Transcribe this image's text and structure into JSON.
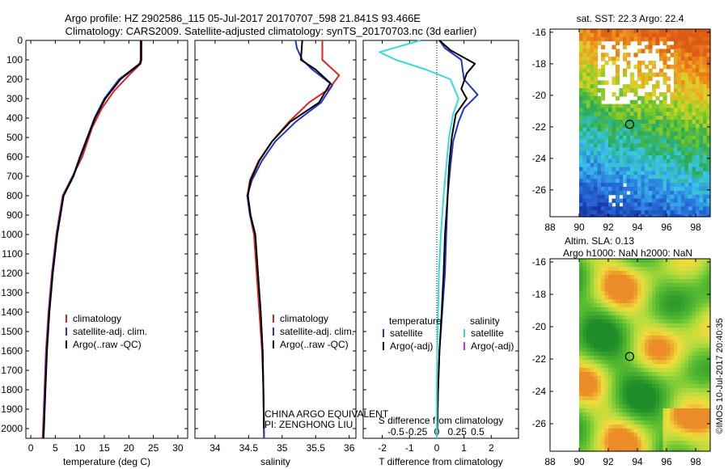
{
  "header": {
    "title_line1": "Argo profile: HZ 2902586_115 05-Jul-2017 20170707_598 21.841S 93.466E",
    "title_line2": "Climatology: CARS2009. Satellite-adjusted climatology: synTS_20170703.nc (3d earlier)"
  },
  "colors": {
    "climatology": "#dd2222",
    "satellite": "#2233cc",
    "argo": "#000000",
    "satellite_salinity": "#33dddd",
    "argo_salinity": "#cc33cc"
  },
  "chart_data": [
    {
      "type": "line",
      "id": "temperature",
      "xlabel": "temperature (deg C)",
      "ylim": [
        2050,
        0
      ],
      "xlim": [
        -1,
        32
      ],
      "xticks": [
        0,
        5,
        10,
        15,
        20,
        25,
        30
      ],
      "yticks": [
        0,
        100,
        200,
        300,
        400,
        500,
        600,
        700,
        800,
        900,
        1000,
        1100,
        1200,
        1300,
        1400,
        1500,
        1600,
        1700,
        1800,
        1900,
        2000
      ],
      "legend": [
        "climatology",
        "satellite-adj. clim.",
        "Argo(..raw -QC)"
      ],
      "series": [
        {
          "name": "climatology",
          "color": "#dd2222",
          "points": [
            [
              22.6,
              0
            ],
            [
              22.6,
              100
            ],
            [
              22.4,
              120
            ],
            [
              20,
              180
            ],
            [
              17,
              260
            ],
            [
              14.5,
              350
            ],
            [
              12.5,
              450
            ],
            [
              10.5,
              600
            ],
            [
              8.5,
              700
            ],
            [
              6.5,
              800
            ],
            [
              5.2,
              1000
            ],
            [
              4.3,
              1200
            ],
            [
              3.6,
              1400
            ],
            [
              3.1,
              1600
            ],
            [
              2.8,
              1800
            ],
            [
              2.5,
              2000
            ],
            [
              2.4,
              2050
            ]
          ]
        },
        {
          "name": "satellite-adj. clim.",
          "color": "#2233cc",
          "points": [
            [
              22.4,
              0
            ],
            [
              22.4,
              100
            ],
            [
              22.2,
              120
            ],
            [
              18,
              200
            ],
            [
              15,
              300
            ],
            [
              13,
              400
            ],
            [
              11.5,
              500
            ],
            [
              10,
              600
            ],
            [
              8.6,
              700
            ],
            [
              6.6,
              800
            ],
            [
              5.3,
              1000
            ],
            [
              4.4,
              1200
            ],
            [
              3.7,
              1400
            ],
            [
              3.2,
              1600
            ],
            [
              2.9,
              1800
            ],
            [
              2.6,
              2000
            ],
            [
              2.5,
              2050
            ]
          ]
        },
        {
          "name": "Argo(..raw -QC)",
          "color": "#000000",
          "points": [
            [
              22.5,
              0
            ],
            [
              22.5,
              100
            ],
            [
              22.3,
              120
            ],
            [
              18.3,
              200
            ],
            [
              15.2,
              300
            ],
            [
              13.1,
              400
            ],
            [
              11.6,
              500
            ],
            [
              10.1,
              600
            ],
            [
              8.7,
              700
            ],
            [
              6.7,
              800
            ],
            [
              5.4,
              1000
            ],
            [
              4.5,
              1200
            ],
            [
              3.8,
              1400
            ],
            [
              3.3,
              1600
            ],
            [
              3,
              1800
            ],
            [
              2.7,
              2000
            ],
            [
              2.6,
              2050
            ]
          ]
        }
      ]
    },
    {
      "type": "line",
      "id": "salinity",
      "xlabel": "salinity",
      "ylim": [
        2050,
        0
      ],
      "xlim": [
        33.7,
        36.1
      ],
      "xticks": [
        34,
        34.5,
        35,
        35.5,
        36
      ],
      "xtick_labels": [
        "34",
        "34.5",
        "35",
        "35.5",
        "36"
      ],
      "legend": [
        "climatology",
        "satellite-adj. clim.",
        "Argo(..raw -QC)"
      ],
      "annotation": [
        "CHINA ARGO EQUIVALENT",
        "PI: ZENGHONG LIU"
      ],
      "series": [
        {
          "name": "climatology",
          "color": "#dd2222",
          "points": [
            [
              35.6,
              0
            ],
            [
              35.6,
              100
            ],
            [
              35.85,
              180
            ],
            [
              35.7,
              250
            ],
            [
              35.4,
              320
            ],
            [
              35.1,
              420
            ],
            [
              34.85,
              520
            ],
            [
              34.65,
              620
            ],
            [
              34.52,
              720
            ],
            [
              34.48,
              800
            ],
            [
              34.52,
              900
            ],
            [
              34.58,
              1000
            ],
            [
              34.62,
              1200
            ],
            [
              34.66,
              1400
            ],
            [
              34.7,
              1600
            ],
            [
              34.72,
              1800
            ],
            [
              34.73,
              2050
            ]
          ]
        },
        {
          "name": "satellite-adj. clim.",
          "color": "#2233cc",
          "points": [
            [
              35.2,
              0
            ],
            [
              35.22,
              40
            ],
            [
              35.3,
              100
            ],
            [
              35.45,
              150
            ],
            [
              35.75,
              230
            ],
            [
              35.58,
              320
            ],
            [
              35.2,
              420
            ],
            [
              34.9,
              520
            ],
            [
              34.7,
              620
            ],
            [
              34.55,
              720
            ],
            [
              34.48,
              800
            ],
            [
              34.52,
              900
            ],
            [
              34.6,
              1000
            ],
            [
              34.64,
              1200
            ],
            [
              34.68,
              1400
            ],
            [
              34.71,
              1600
            ],
            [
              34.72,
              1800
            ],
            [
              34.73,
              2050
            ]
          ]
        },
        {
          "name": "Argo(..raw -QC)",
          "color": "#000000",
          "points": [
            [
              35.3,
              0
            ],
            [
              35.28,
              100
            ],
            [
              35.5,
              150
            ],
            [
              35.72,
              220
            ],
            [
              35.55,
              320
            ],
            [
              35.12,
              420
            ],
            [
              34.85,
              520
            ],
            [
              34.66,
              620
            ],
            [
              34.53,
              720
            ],
            [
              34.49,
              800
            ],
            [
              34.53,
              900
            ],
            [
              34.6,
              1000
            ],
            [
              34.64,
              1200
            ],
            [
              34.68,
              1400
            ],
            [
              34.71,
              1600
            ],
            [
              34.72,
              1800
            ],
            [
              34.73,
              2000
            ]
          ]
        }
      ]
    },
    {
      "type": "line",
      "id": "difference",
      "xlabel": "T difference from climatology",
      "top_xlabel": "S difference from climatology",
      "ylim": [
        2050,
        0
      ],
      "xlim": [
        -2.7,
        3
      ],
      "xticks": [
        -2,
        -1,
        0,
        1,
        2
      ],
      "xtick_labels": [
        "-2",
        "-1",
        "0",
        "1",
        "2"
      ],
      "top_xtick_values": [
        -1.5,
        -0.75,
        0,
        0.75,
        1.5
      ],
      "top_xtick_labels": [
        "-0.5",
        "-0.25",
        "0",
        "0.25",
        "0.5"
      ],
      "legend_left_title": "temperature",
      "legend_right_title": "salinity",
      "legend_left": [
        "satellite",
        "Argo(-adj)"
      ],
      "legend_right": [
        "satellite",
        "Argo(-adj)"
      ],
      "series": [
        {
          "name": "satellite",
          "color": "#2233cc",
          "points": [
            [
              0.1,
              0
            ],
            [
              0.3,
              40
            ],
            [
              0.9,
              100
            ],
            [
              1,
              200
            ],
            [
              1.5,
              280
            ],
            [
              1,
              350
            ],
            [
              0.8,
              420
            ],
            [
              0.6,
              520
            ],
            [
              0.5,
              650
            ],
            [
              0.4,
              800
            ],
            [
              0.35,
              1000
            ],
            [
              0.3,
              1200
            ],
            [
              0.2,
              1400
            ],
            [
              0.1,
              1600
            ],
            [
              0.05,
              1800
            ],
            [
              0,
              2050
            ]
          ]
        },
        {
          "name": "Argo(-adj)",
          "color": "#000000",
          "points": [
            [
              0.1,
              0
            ],
            [
              0.5,
              50
            ],
            [
              1.4,
              120
            ],
            [
              1.1,
              170
            ],
            [
              0.9,
              250
            ],
            [
              1.1,
              300
            ],
            [
              0.7,
              380
            ],
            [
              0.55,
              500
            ],
            [
              0.45,
              650
            ],
            [
              0.4,
              800
            ],
            [
              0.3,
              1000
            ],
            [
              0.25,
              1200
            ],
            [
              0.18,
              1400
            ],
            [
              0.1,
              1600
            ],
            [
              0.05,
              1800
            ],
            [
              0.02,
              2000
            ]
          ]
        },
        {
          "name": "satellite",
          "color": "#33dddd",
          "points": [
            [
              -0.6,
              0
            ],
            [
              -2.1,
              60
            ],
            [
              -1.5,
              100
            ],
            [
              -0.4,
              150
            ],
            [
              0.5,
              200
            ],
            [
              0.8,
              300
            ],
            [
              0.6,
              380
            ],
            [
              0.45,
              500
            ],
            [
              0.35,
              650
            ],
            [
              0.25,
              800
            ],
            [
              0.15,
              1000
            ],
            [
              0.08,
              1200
            ],
            [
              0.05,
              1400
            ],
            [
              0.02,
              1600
            ],
            [
              0,
              1800
            ],
            [
              0,
              2050
            ]
          ]
        }
      ]
    },
    {
      "type": "heatmap",
      "id": "sst-map",
      "title": "sat. SST: 22.3 Argo: 22.4",
      "xlim": [
        88,
        99
      ],
      "ylim": [
        -27.7,
        -15.8
      ],
      "xticks": [
        88,
        90,
        92,
        94,
        96,
        98
      ],
      "yticks": [
        -16,
        -18,
        -20,
        -22,
        -24,
        -26
      ],
      "marker": [
        93.466,
        -21.841
      ]
    },
    {
      "type": "heatmap",
      "id": "sla-map",
      "title_line1": "Altim. SLA: 0.13",
      "title_line2": "Argo h1000: NaN h2000: NaN",
      "xlim": [
        88,
        99
      ],
      "ylim": [
        -27.7,
        -15.8
      ],
      "xticks": [
        88,
        90,
        92,
        94,
        96,
        98
      ],
      "yticks": [
        -16,
        -18,
        -20,
        -22,
        -24,
        -26
      ],
      "marker": [
        93.466,
        -21.841
      ]
    }
  ],
  "footer": {
    "credit": "©IMOS 10-Jul-2017 20:40:35"
  }
}
